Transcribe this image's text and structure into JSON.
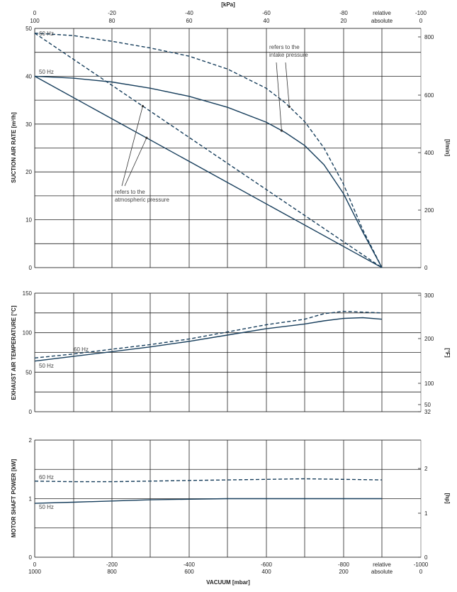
{
  "colors": {
    "curve": "#173e5c",
    "grid": "#222222",
    "text": "#222222"
  },
  "top_axis": {
    "unit_label": "[kPa]",
    "relative": [
      "0",
      "-20",
      "-40",
      "-60",
      "-80",
      "relative",
      "-100"
    ],
    "absolute": [
      "100",
      "80",
      "60",
      "40",
      "20",
      "absolute",
      "0"
    ]
  },
  "bottom_axis": {
    "title": "VACUUM  [mbar]",
    "relative": [
      "0",
      "-200",
      "-400",
      "-600",
      "-800",
      "relative",
      "-1000"
    ],
    "absolute": [
      "1000",
      "800",
      "600",
      "400",
      "200",
      "absolute",
      "0"
    ]
  },
  "chart_data": [
    {
      "type": "line",
      "ylabel": "SUCTION AIR RATE [m³/h]",
      "ylabel_right": "[l/min]",
      "xlim": [
        0,
        -900
      ],
      "ylim": [
        0,
        50
      ],
      "yticks": [
        "0",
        "10",
        "20",
        "30",
        "40",
        "50"
      ],
      "yticks_right": [
        "0",
        "200",
        "400",
        "600",
        "800"
      ],
      "grid": true,
      "series": [
        {
          "name": "60 Hz",
          "style": "dashed",
          "x": [
            0,
            -100,
            -200,
            -300,
            -400,
            -500,
            -600,
            -650,
            -700,
            -750,
            -800,
            -850,
            -900
          ],
          "y": [
            49,
            48.5,
            47.3,
            45.9,
            44.2,
            41.5,
            37.5,
            34.4,
            30.5,
            25,
            17.5,
            8,
            0
          ]
        },
        {
          "name": "50 Hz",
          "style": "solid",
          "x": [
            0,
            -100,
            -200,
            -300,
            -400,
            -500,
            -600,
            -650,
            -700,
            -750,
            -800,
            -850,
            -900
          ],
          "y": [
            40,
            39.6,
            38.8,
            37.5,
            35.8,
            33.5,
            30.4,
            28.2,
            25.5,
            21.5,
            15.5,
            7.5,
            0
          ]
        },
        {
          "name": "",
          "style": "dashed",
          "x": [
            0,
            -900
          ],
          "y": [
            49,
            0
          ]
        },
        {
          "name": "",
          "style": "solid",
          "x": [
            0,
            -900
          ],
          "y": [
            40,
            0
          ]
        }
      ],
      "annotations": [
        {
          "text": [
            "refers to the",
            "intake pressure"
          ]
        },
        {
          "text": [
            "refers to the",
            "atmospheric pressure"
          ]
        }
      ]
    },
    {
      "type": "line",
      "ylabel": "EXHAUST AIR TEMPERATURE [°C]",
      "ylabel_right": "[°F]",
      "xlim": [
        0,
        -900
      ],
      "ylim": [
        0,
        150
      ],
      "yticks": [
        "0",
        "50",
        "100",
        "150"
      ],
      "yticks_right": [
        "32",
        "50",
        "100",
        "200",
        "300"
      ],
      "grid": true,
      "series": [
        {
          "name": "60 Hz",
          "style": "dashed",
          "x": [
            0,
            -100,
            -200,
            -300,
            -400,
            -500,
            -600,
            -700,
            -750,
            -800,
            -850,
            -900
          ],
          "y": [
            68,
            73,
            79,
            85,
            92,
            101,
            110,
            117,
            124,
            127,
            126,
            125
          ]
        },
        {
          "name": "50 Hz",
          "style": "solid",
          "x": [
            0,
            -100,
            -200,
            -300,
            -400,
            -500,
            -600,
            -700,
            -750,
            -800,
            -850,
            -900
          ],
          "y": [
            64,
            70,
            76,
            82,
            89,
            97,
            105,
            111,
            115,
            118,
            119,
            117
          ]
        }
      ]
    },
    {
      "type": "line",
      "ylabel": "MOTOR SHAFT POWER [kW]",
      "ylabel_right": "[hp]",
      "xlim": [
        0,
        -900
      ],
      "ylim": [
        0,
        2
      ],
      "yticks": [
        "0",
        "1",
        "2"
      ],
      "yticks_right": [
        "0",
        "1",
        "2"
      ],
      "grid": true,
      "series": [
        {
          "name": "60 Hz",
          "style": "dashed",
          "x": [
            0,
            -100,
            -200,
            -300,
            -400,
            -500,
            -600,
            -700,
            -800,
            -900
          ],
          "y": [
            1.3,
            1.29,
            1.29,
            1.3,
            1.31,
            1.32,
            1.33,
            1.34,
            1.33,
            1.32
          ]
        },
        {
          "name": "50 Hz",
          "style": "solid",
          "x": [
            0,
            -100,
            -200,
            -300,
            -400,
            -500,
            -600,
            -700,
            -800,
            -900
          ],
          "y": [
            0.92,
            0.94,
            0.96,
            0.98,
            0.99,
            1.0,
            1.0,
            1.0,
            1.0,
            1.0
          ]
        }
      ]
    }
  ]
}
